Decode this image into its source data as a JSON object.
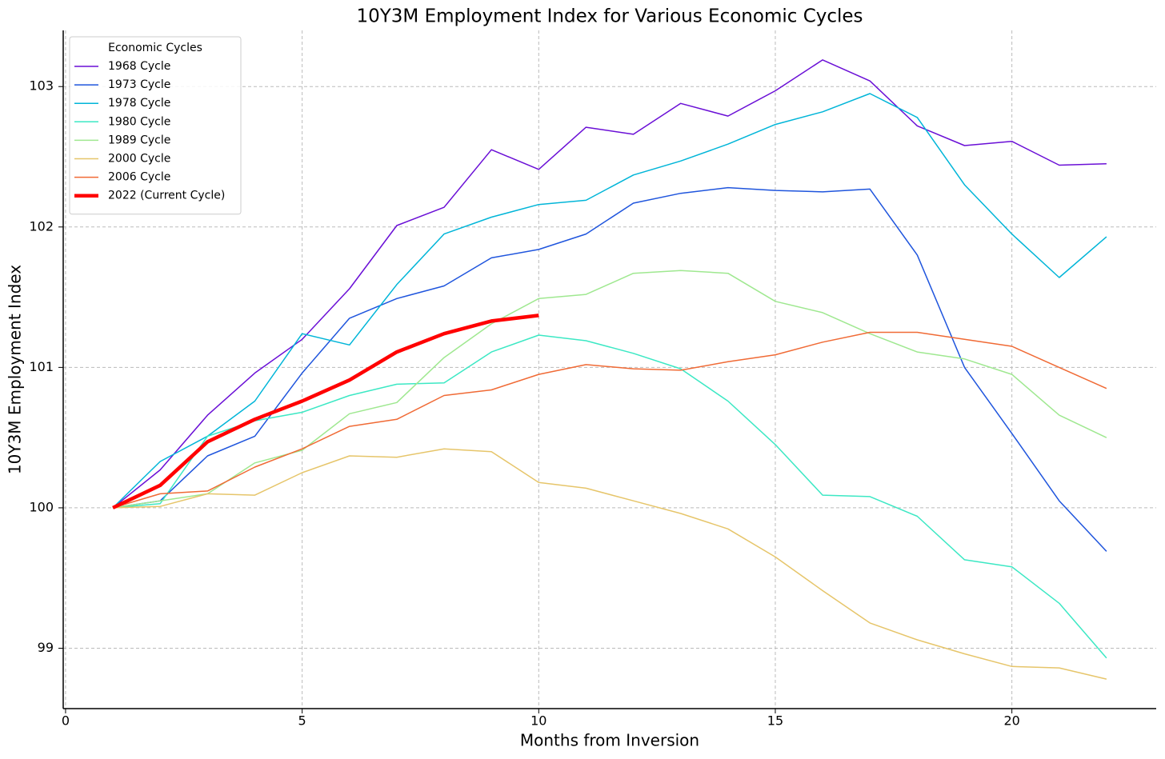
{
  "chart_data": {
    "type": "line",
    "title": "10Y3M Employment Index for Various Economic Cycles",
    "xlabel": "Months from Inversion",
    "ylabel": "10Y3M Employment Index",
    "x": [
      1,
      2,
      3,
      4,
      5,
      6,
      7,
      8,
      9,
      10,
      11,
      12,
      13,
      14,
      15,
      16,
      17,
      18,
      19,
      20,
      21,
      22
    ],
    "series": [
      {
        "name": "1968 Cycle",
        "color": "#6a0fd6",
        "width": 1.5,
        "values": [
          100,
          100.27,
          100.66,
          100.96,
          101.2,
          101.56,
          102.01,
          102.14,
          102.55,
          102.41,
          102.71,
          102.66,
          102.88,
          102.79,
          102.97,
          103.19,
          103.04,
          102.72,
          102.58,
          102.61,
          102.44,
          102.45
        ]
      },
      {
        "name": "1973 Cycle",
        "color": "#1f55dd",
        "width": 1.5,
        "values": [
          100,
          100.05,
          100.37,
          100.51,
          100.96,
          101.35,
          101.49,
          101.58,
          101.78,
          101.84,
          101.95,
          102.17,
          102.24,
          102.28,
          102.26,
          102.25,
          102.27,
          101.8,
          101.0,
          100.53,
          100.05,
          99.69
        ]
      },
      {
        "name": "1978 Cycle",
        "color": "#00b5d8",
        "width": 1.5,
        "values": [
          100,
          100.33,
          100.51,
          100.76,
          101.24,
          101.16,
          101.59,
          101.95,
          102.07,
          102.16,
          102.19,
          102.37,
          102.47,
          102.59,
          102.73,
          102.82,
          102.95,
          102.78,
          102.3,
          101.95,
          101.64,
          101.93
        ]
      },
      {
        "name": "1980 Cycle",
        "color": "#3ce8c4",
        "width": 1.5,
        "values": [
          100,
          100.03,
          100.51,
          100.62,
          100.68,
          100.8,
          100.88,
          100.89,
          101.11,
          101.23,
          101.19,
          101.1,
          100.99,
          100.76,
          100.45,
          100.09,
          100.08,
          99.94,
          99.63,
          99.58,
          99.32,
          98.93
        ]
      },
      {
        "name": "1989 Cycle",
        "color": "#9fe890",
        "width": 1.5,
        "values": [
          100,
          100.05,
          100.1,
          100.32,
          100.41,
          100.67,
          100.75,
          101.07,
          101.31,
          101.49,
          101.52,
          101.67,
          101.69,
          101.67,
          101.47,
          101.39,
          101.24,
          101.11,
          101.06,
          100.95,
          100.66,
          100.5
        ]
      },
      {
        "name": "2000 Cycle",
        "color": "#e6c56a",
        "width": 1.5,
        "values": [
          100,
          100.01,
          100.1,
          100.09,
          100.25,
          100.37,
          100.36,
          100.42,
          100.4,
          100.18,
          100.14,
          100.05,
          99.96,
          99.85,
          99.65,
          99.41,
          99.18,
          99.06,
          98.96,
          98.87,
          98.86,
          98.78
        ]
      },
      {
        "name": "2006 Cycle",
        "color": "#f06a35",
        "width": 1.5,
        "values": [
          100,
          100.1,
          100.12,
          100.29,
          100.42,
          100.58,
          100.63,
          100.8,
          100.84,
          100.95,
          101.02,
          100.99,
          100.98,
          101.04,
          101.09,
          101.18,
          101.25,
          101.25,
          101.2,
          101.15,
          101.0,
          100.85
        ]
      },
      {
        "name": "2022 (Current Cycle)",
        "color": "#ff0000",
        "width": 4.5,
        "values": [
          100,
          100.16,
          100.47,
          100.63,
          100.76,
          100.91,
          101.11,
          101.24,
          101.33,
          101.37,
          null,
          null,
          null,
          null,
          null,
          null,
          null,
          null,
          null,
          null,
          null,
          null
        ]
      }
    ],
    "xlim": [
      -0.05,
      23.05
    ],
    "ylim": [
      98.57,
      103.4
    ],
    "xticks": [
      0,
      5,
      10,
      15,
      20
    ],
    "yticks": [
      99,
      100,
      101,
      102,
      103
    ],
    "grid": true,
    "legend": {
      "title": "Economic Cycles",
      "loc": "upper left"
    }
  }
}
